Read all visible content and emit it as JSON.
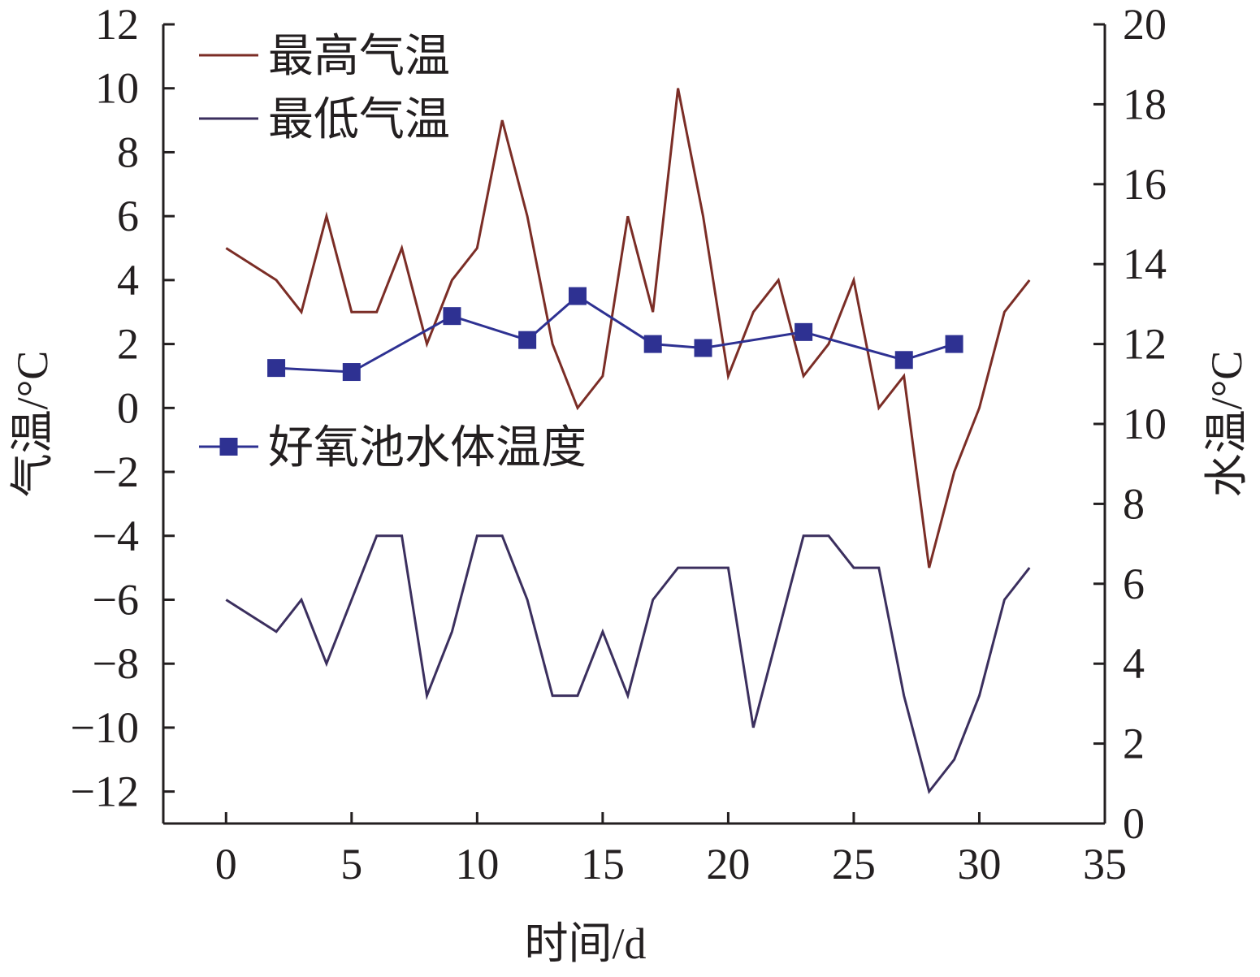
{
  "chart_data": {
    "type": "line",
    "xlabel": "时间/d",
    "ylabel_left": "气温/°C",
    "ylabel_right": "水温/°C",
    "xlim": [
      -2.5,
      35
    ],
    "ylim_left": [
      -13,
      12
    ],
    "ylim_right": [
      0,
      20
    ],
    "x_ticks": [
      "0",
      "5",
      "10",
      "15",
      "20",
      "25",
      "30",
      "35"
    ],
    "y_left_ticks": [
      "12",
      "10",
      "8",
      "6",
      "4",
      "2",
      "0",
      "−2",
      "−4",
      "−6",
      "−8",
      "−10",
      "−12"
    ],
    "y_right_ticks": [
      "20",
      "18",
      "16",
      "14",
      "12",
      "10",
      "8",
      "6",
      "4",
      "2",
      "0"
    ],
    "grid": false,
    "series": [
      {
        "name": "最高气温",
        "axis": "left",
        "color": "#7b2d26",
        "marker": "none",
        "x": [
          0,
          2,
          3,
          4,
          5,
          6,
          7,
          8,
          9,
          10,
          11,
          12,
          13,
          14,
          15,
          16,
          17,
          18,
          19,
          20,
          21,
          22,
          23,
          24,
          25,
          26,
          27,
          28,
          29,
          30,
          31,
          32
        ],
        "values": [
          5,
          4,
          3,
          6,
          3,
          3,
          5,
          2,
          4,
          5,
          9,
          6,
          2,
          0,
          1,
          6,
          3,
          10,
          6,
          1,
          3,
          4,
          1,
          2,
          4,
          0,
          1,
          -5,
          -2,
          0,
          3,
          4
        ]
      },
      {
        "name": "最低气温",
        "axis": "left",
        "color": "#3b2f5e",
        "marker": "none",
        "x": [
          0,
          2,
          3,
          4,
          5,
          6,
          7,
          8,
          9,
          10,
          11,
          12,
          13,
          14,
          15,
          16,
          17,
          18,
          19,
          20,
          21,
          22,
          23,
          24,
          25,
          26,
          27,
          28,
          29,
          30,
          31,
          32
        ],
        "values": [
          -6,
          -7,
          -6,
          -8,
          -6,
          -4,
          -4,
          -9,
          -7,
          -4,
          -4,
          -6,
          -9,
          -9,
          -7,
          -9,
          -6,
          -5,
          -5,
          -5,
          -10,
          -7,
          -4,
          -4,
          -5,
          -5,
          -9,
          -12,
          -11,
          -9,
          -6,
          -5
        ]
      },
      {
        "name": "好氧池水体温度",
        "axis": "right",
        "color": "#2e3192",
        "marker": "square",
        "x": [
          2,
          5,
          9,
          12,
          14,
          17,
          19,
          23,
          27,
          29
        ],
        "values": [
          11.4,
          11.3,
          12.7,
          12.1,
          13.2,
          12.0,
          11.9,
          12.3,
          11.6,
          12.0
        ]
      }
    ]
  }
}
